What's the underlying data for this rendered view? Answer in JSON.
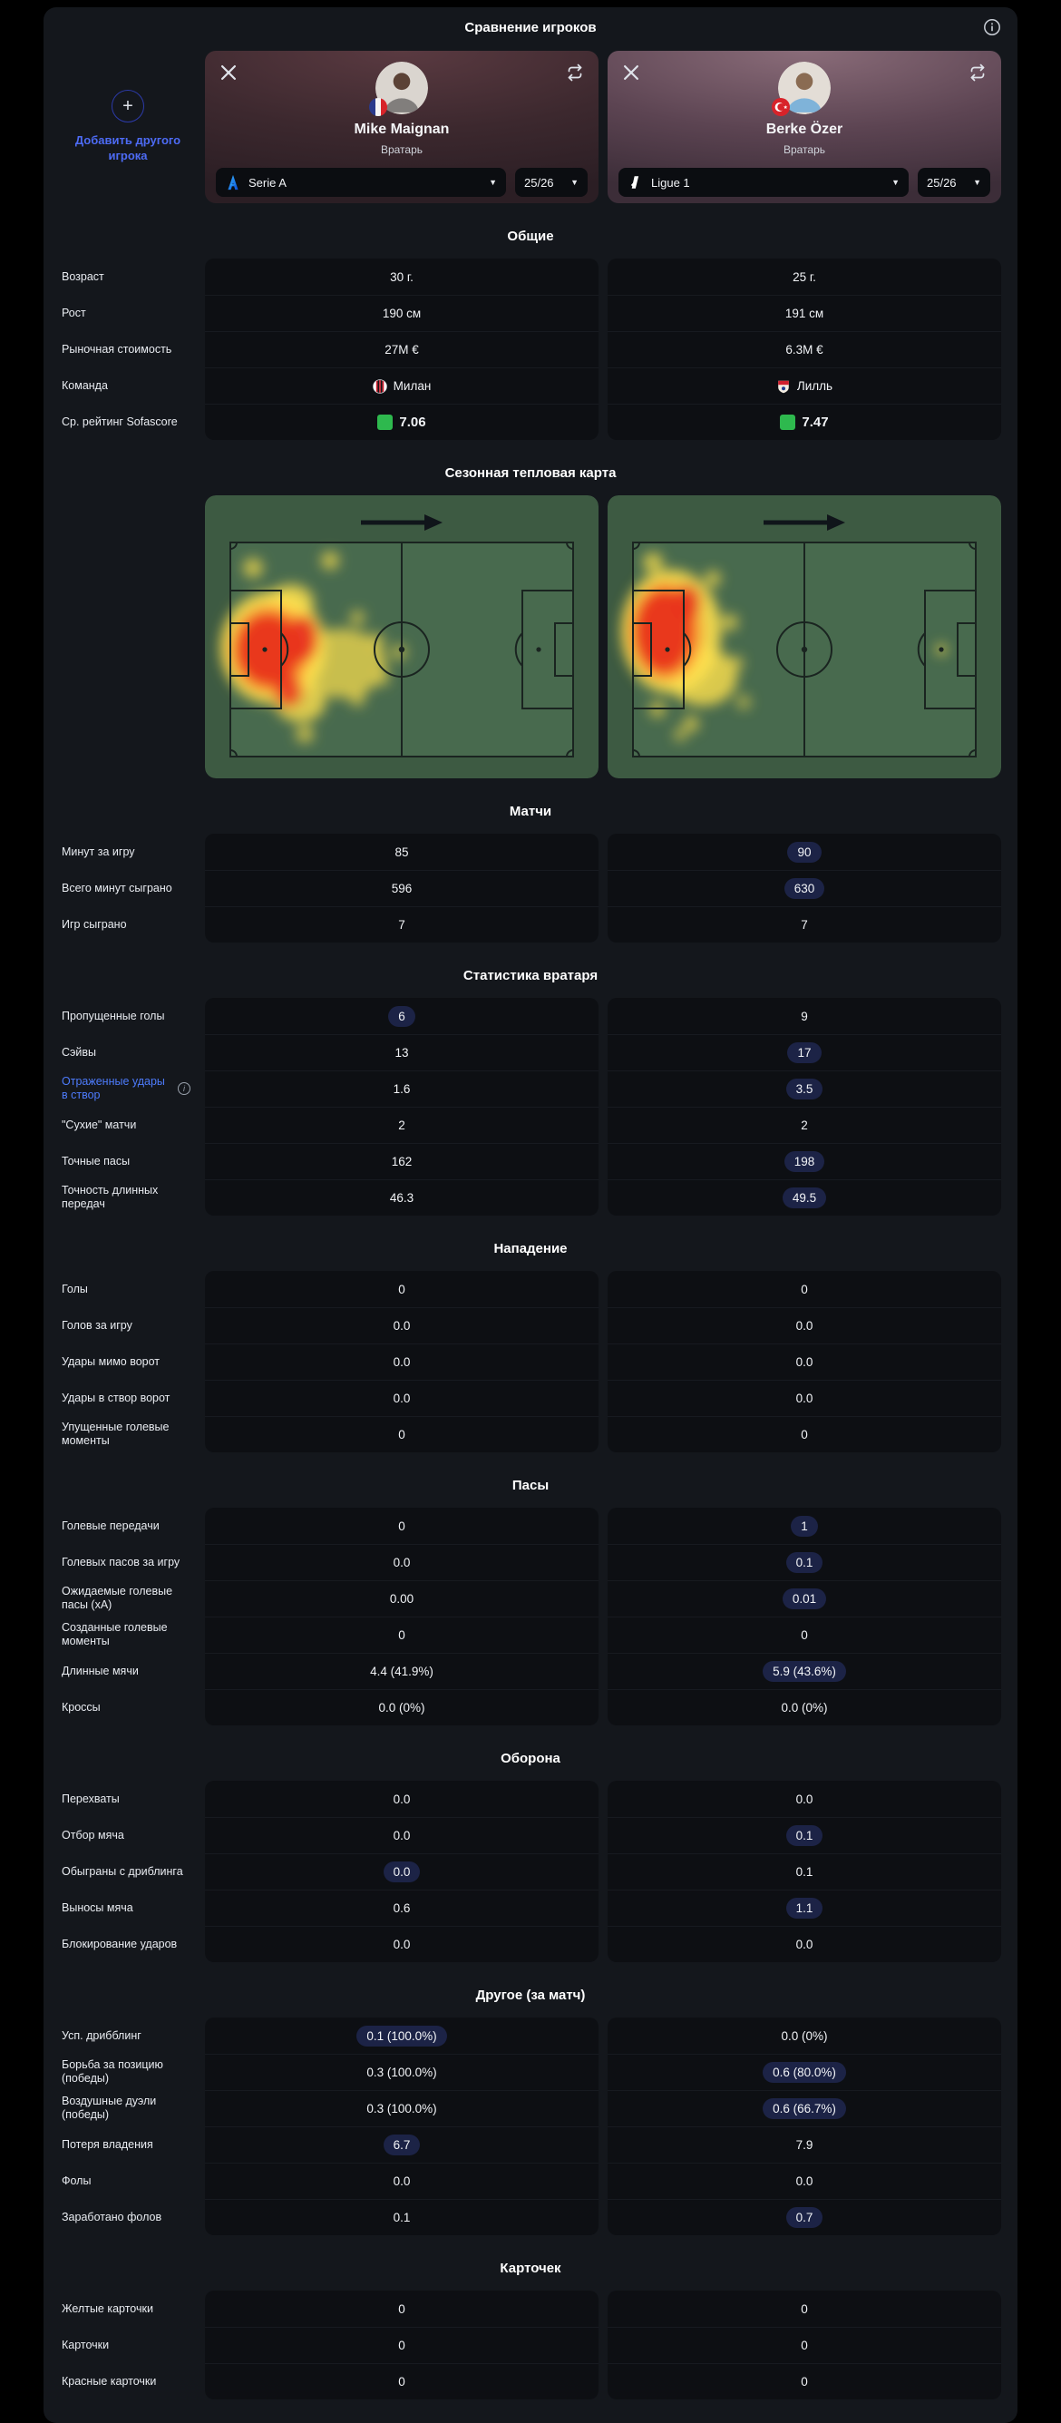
{
  "colors": {
    "accent_blue": "#4d7bfb",
    "add_button_blue": "#4d6bf5",
    "highlight_pill": "#1c2346",
    "rating_green": "#2eb94e",
    "panel_bg": "#14171c",
    "cell_bg": "#0d0f13",
    "heat_yellow": "#ffe14d",
    "heat_red": "#e8311f"
  },
  "header": {
    "title": "Сравнение игроков"
  },
  "add_player": {
    "label": "Добавить другого игрока"
  },
  "players": [
    {
      "name": "Mike Maignan",
      "position": "Вратарь",
      "league": "Serie A",
      "season": "25/26",
      "nationality_flag": "france-flag"
    },
    {
      "name": "Berke Özer",
      "position": "Вратарь",
      "league": "Ligue 1",
      "season": "25/26",
      "nationality_flag": "turkey-flag"
    }
  ],
  "stat_sections": [
    {
      "title": "Общие",
      "rows": [
        {
          "label": "Возраст",
          "v1": "30 г.",
          "v2": "25 г."
        },
        {
          "label": "Рост",
          "v1": "190 см",
          "v2": "191 см"
        },
        {
          "label": "Рыночная стоимость",
          "v1": "27M €",
          "v2": "6.3M €"
        },
        {
          "type": "team",
          "label": "Команда",
          "v1": "Милан",
          "v2": "Лилль",
          "logo1": "milan-logo",
          "logo2": "lille-logo"
        },
        {
          "type": "rating",
          "label": "Ср. рейтинг Sofascore",
          "v1": "7.06",
          "v2": "7.47"
        }
      ]
    },
    {
      "type": "heatmap",
      "title": "Сезонная тепловая карта"
    },
    {
      "title": "Матчи",
      "rows": [
        {
          "label": "Минут за игру",
          "v1": "85",
          "v2": "90",
          "hl": "right"
        },
        {
          "label": "Всего минут сыграно",
          "v1": "596",
          "v2": "630",
          "hl": "right"
        },
        {
          "label": "Игр сыграно",
          "v1": "7",
          "v2": "7"
        }
      ]
    },
    {
      "title": "Статистика вратаря",
      "rows": [
        {
          "label": "Пропущенные голы",
          "v1": "6",
          "v2": "9",
          "hl": "left"
        },
        {
          "label": "Сэйвы",
          "v1": "13",
          "v2": "17",
          "hl": "right"
        },
        {
          "label": "Отраженные удары в створ",
          "v1": "1.6",
          "v2": "3.5",
          "hl": "right",
          "link": true,
          "info": true
        },
        {
          "label": "\"Сухие\" матчи",
          "v1": "2",
          "v2": "2"
        },
        {
          "label": "Точные пасы",
          "v1": "162",
          "v2": "198",
          "hl": "right"
        },
        {
          "label": "Точность длинных передач",
          "v1": "46.3",
          "v2": "49.5",
          "hl": "right"
        }
      ]
    },
    {
      "title": "Нападение",
      "rows": [
        {
          "label": "Голы",
          "v1": "0",
          "v2": "0"
        },
        {
          "label": "Голов за игру",
          "v1": "0.0",
          "v2": "0.0"
        },
        {
          "label": "Удары мимо ворот",
          "v1": "0.0",
          "v2": "0.0"
        },
        {
          "label": "Удары в створ ворот",
          "v1": "0.0",
          "v2": "0.0"
        },
        {
          "label": "Упущенные голевые моменты",
          "v1": "0",
          "v2": "0"
        }
      ]
    },
    {
      "title": "Пасы",
      "rows": [
        {
          "label": "Голевые передачи",
          "v1": "0",
          "v2": "1",
          "hl": "right"
        },
        {
          "label": "Голевых пасов за игру",
          "v1": "0.0",
          "v2": "0.1",
          "hl": "right"
        },
        {
          "label": "Ожидаемые голевые пасы (xA)",
          "v1": "0.00",
          "v2": "0.01",
          "hl": "right"
        },
        {
          "label": "Созданные голевые моменты",
          "v1": "0",
          "v2": "0"
        },
        {
          "label": "Длинные мячи",
          "v1": "4.4 (41.9%)",
          "v2": "5.9 (43.6%)",
          "hl": "right"
        },
        {
          "label": "Кроссы",
          "v1": "0.0 (0%)",
          "v2": "0.0 (0%)"
        }
      ]
    },
    {
      "title": "Оборона",
      "rows": [
        {
          "label": "Перехваты",
          "v1": "0.0",
          "v2": "0.0"
        },
        {
          "label": "Отбор мяча",
          "v1": "0.0",
          "v2": "0.1",
          "hl": "right"
        },
        {
          "label": "Обыграны с дриблинга",
          "v1": "0.0",
          "v2": "0.1",
          "hl": "left"
        },
        {
          "label": "Выносы мяча",
          "v1": "0.6",
          "v2": "1.1",
          "hl": "right"
        },
        {
          "label": "Блокирование ударов",
          "v1": "0.0",
          "v2": "0.0"
        }
      ]
    },
    {
      "title": "Другое (за матч)",
      "rows": [
        {
          "label": "Усп. дрибблинг",
          "v1": "0.1 (100.0%)",
          "v2": "0.0 (0%)",
          "hl": "left"
        },
        {
          "label": "Борьба за позицию (победы)",
          "v1": "0.3 (100.0%)",
          "v2": "0.6 (80.0%)",
          "hl": "right"
        },
        {
          "label": "Воздушные дуэли (победы)",
          "v1": "0.3 (100.0%)",
          "v2": "0.6 (66.7%)",
          "hl": "right"
        },
        {
          "label": "Потеря владения",
          "v1": "6.7",
          "v2": "7.9",
          "hl": "left"
        },
        {
          "label": "Фолы",
          "v1": "0.0",
          "v2": "0.0"
        },
        {
          "label": "Заработано фолов",
          "v1": "0.1",
          "v2": "0.7",
          "hl": "right"
        }
      ]
    },
    {
      "title": "Карточек",
      "rows": [
        {
          "label": "Желтые карточки",
          "v1": "0",
          "v2": "0"
        },
        {
          "label": "Карточки",
          "v1": "0",
          "v2": "0"
        },
        {
          "label": "Красные карточки",
          "v1": "0",
          "v2": "0"
        }
      ]
    }
  ]
}
